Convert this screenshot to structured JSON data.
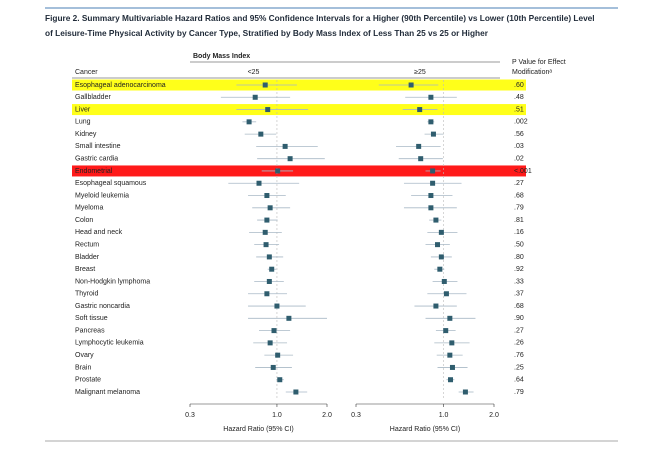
{
  "chart_data": {
    "type": "forest",
    "title": [
      "Figure 2. Summary Multivariable Hazard Ratios and 95% Confidence Intervals for a Higher (90th Percentile) vs Lower (10th Percentile) Level",
      "of Leisure-Time Physical Activity by Cancer Type, Stratified by Body Mass Index of Less Than 25 vs 25 or Higher"
    ],
    "category_header": "Cancer",
    "group_header": "Body Mass Index",
    "p_value_header": [
      "P Value for Effect",
      "Modificationᵃ"
    ],
    "categories": [
      "Esophageal adenocarcinoma",
      "Gallbladder",
      "Liver",
      "Lung",
      "Kidney",
      "Small intestine",
      "Gastric cardia",
      "Endometrial",
      "Esophageal squamous",
      "Myeloid leukemia",
      "Myeloma",
      "Colon",
      "Head and neck",
      "Rectum",
      "Bladder",
      "Breast",
      "Non-Hodgkin lymphoma",
      "Thyroid",
      "Gastric noncardia",
      "Soft tissue",
      "Pancreas",
      "Lymphocytic leukemia",
      "Ovary",
      "Brain",
      "Prostate",
      "Malignant melanoma"
    ],
    "p_values": [
      ".60",
      ".48",
      ".51",
      ".002",
      ".56",
      ".03",
      ".02",
      "<.001",
      ".27",
      ".68",
      ".79",
      ".81",
      ".16",
      ".50",
      ".80",
      ".92",
      ".33",
      ".37",
      ".68",
      ".90",
      ".27",
      ".26",
      ".76",
      ".25",
      ".64",
      ".79"
    ],
    "highlights": [
      {
        "index": 0,
        "color": "#ffff1a"
      },
      {
        "index": 2,
        "color": "#ffff1a"
      },
      {
        "index": 7,
        "color": "#ff1a1a"
      }
    ],
    "series": [
      {
        "name": "<25",
        "color": "#2f5d6e",
        "ci_color": "#a9b9c6",
        "xlabel": "Hazard Ratio (95% CI)",
        "values": [
          0.85,
          0.74,
          0.88,
          0.68,
          0.8,
          1.12,
          1.2,
          1.01,
          0.78,
          0.87,
          0.91,
          0.87,
          0.85,
          0.86,
          0.9,
          0.93,
          0.9,
          0.87,
          1.0,
          1.18,
          0.96,
          0.91,
          1.01,
          0.95,
          1.04,
          1.3
        ],
        "ci_lower": [
          0.57,
          0.46,
          0.57,
          0.62,
          0.64,
          0.75,
          0.76,
          0.81,
          0.51,
          0.67,
          0.71,
          0.76,
          0.68,
          0.73,
          0.75,
          0.88,
          0.73,
          0.67,
          0.67,
          0.67,
          0.78,
          0.72,
          0.84,
          0.74,
          0.99,
          1.13
        ],
        "ci_upper": [
          1.32,
          1.2,
          1.54,
          0.75,
          0.99,
          1.76,
          1.94,
          1.25,
          1.36,
          1.13,
          1.2,
          1.01,
          1.07,
          1.03,
          1.09,
          0.99,
          1.1,
          1.15,
          1.49,
          2.0,
          1.2,
          1.15,
          1.25,
          1.23,
          1.1,
          1.52
        ]
      },
      {
        "name": "≥25",
        "color": "#2f5d6e",
        "ci_color": "#a9b9c6",
        "xlabel": "Hazard Ratio (95% CI)",
        "values": [
          0.64,
          0.84,
          0.72,
          0.84,
          0.87,
          0.71,
          0.73,
          0.86,
          0.86,
          0.84,
          0.84,
          0.9,
          0.97,
          0.92,
          0.97,
          0.95,
          1.01,
          1.04,
          0.9,
          1.09,
          1.03,
          1.12,
          1.09,
          1.13,
          1.1,
          1.35
        ],
        "ci_lower": [
          0.41,
          0.59,
          0.57,
          0.8,
          0.77,
          0.52,
          0.54,
          0.78,
          0.58,
          0.64,
          0.58,
          0.82,
          0.8,
          0.78,
          0.84,
          0.88,
          0.86,
          0.8,
          0.67,
          0.78,
          0.9,
          0.88,
          0.91,
          0.92,
          1.04,
          1.23
        ],
        "ci_upper": [
          0.93,
          1.2,
          0.92,
          0.88,
          1.0,
          0.96,
          0.99,
          0.96,
          1.28,
          1.13,
          1.2,
          0.97,
          1.21,
          1.09,
          1.12,
          1.01,
          1.21,
          1.37,
          1.2,
          1.55,
          1.18,
          1.43,
          1.3,
          1.39,
          1.16,
          1.51
        ]
      }
    ],
    "xlim": [
      0.3,
      2.0
    ],
    "xticks": [
      0.3,
      {
        "value": 1,
        "label": "1.0"
      },
      {
        "value": 2,
        "label": "2.0"
      }
    ],
    "log_x": true,
    "reference_line": 1
  }
}
